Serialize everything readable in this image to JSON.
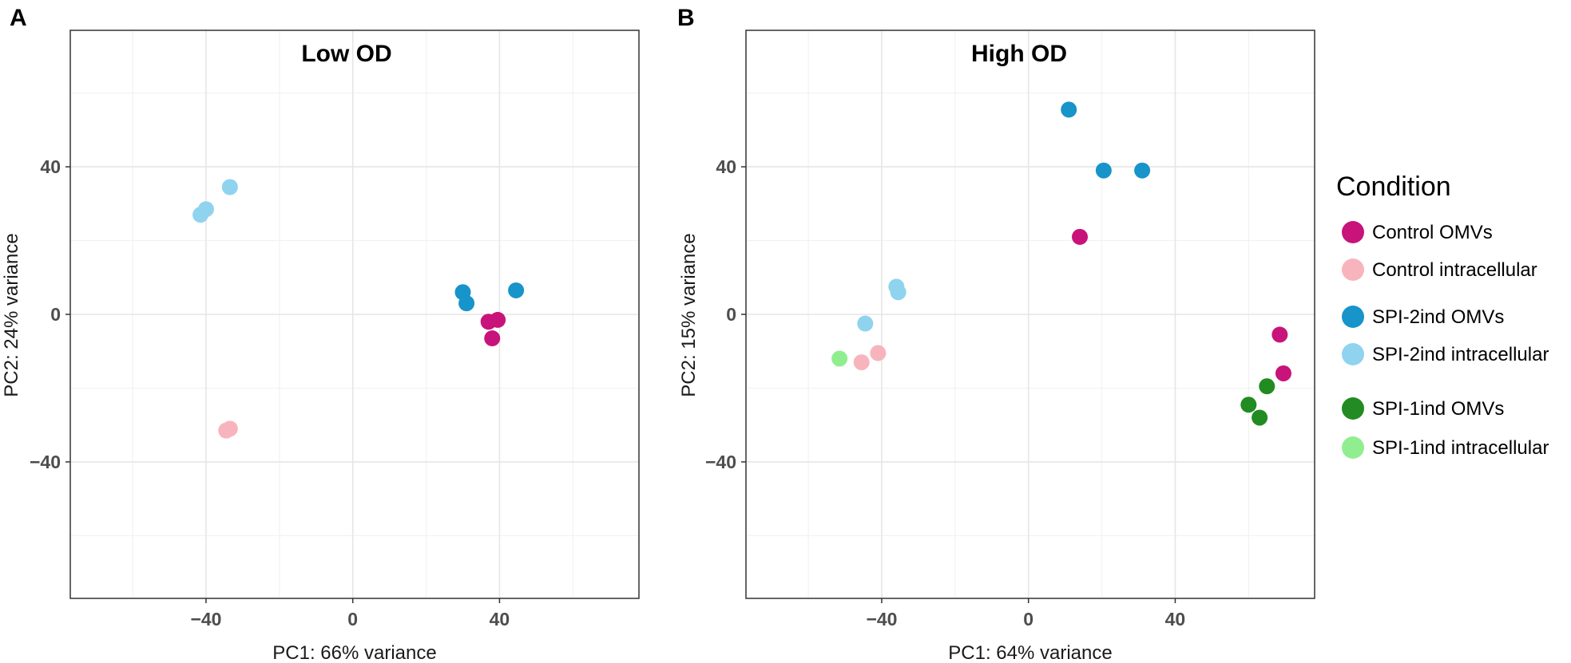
{
  "legend": {
    "title": "Condition",
    "entries": [
      {
        "key": "control_omv",
        "label": "Control OMVs",
        "color": "#C8137A"
      },
      {
        "key": "control_intra",
        "label": "Control intracellular",
        "color": "#F8B4BC"
      },
      {
        "key": "spi2_omv",
        "label": "SPI-2ind OMVs",
        "color": "#1794C9"
      },
      {
        "key": "spi2_intra",
        "label": "SPI-2ind intracellular",
        "color": "#8FD3EF"
      },
      {
        "key": "spi1_omv",
        "label": "SPI-1ind OMVs",
        "color": "#228B22"
      },
      {
        "key": "spi1_intra",
        "label": "SPI-1ind intracellular",
        "color": "#90EE90"
      }
    ]
  },
  "chart_data": [
    {
      "type": "scatter",
      "panel": "A",
      "title": "Low OD",
      "xlabel": "PC1: 66% variance",
      "ylabel": "PC2: 24% variance",
      "xlim": [
        -77,
        78
      ],
      "ylim": [
        -77,
        77
      ],
      "xticks": [
        -40,
        0,
        40
      ],
      "yticks": [
        -40,
        0,
        40
      ],
      "grid": true,
      "series": [
        {
          "key": "spi2_intra",
          "points": [
            [
              -41.5,
              27
            ],
            [
              -40,
              28.5
            ],
            [
              -33.5,
              34.5
            ]
          ]
        },
        {
          "key": "control_intra",
          "points": [
            [
              -34.5,
              -31.5
            ],
            [
              -33.5,
              -31
            ]
          ]
        },
        {
          "key": "spi2_omv",
          "points": [
            [
              30,
              6
            ],
            [
              31,
              3
            ],
            [
              44.5,
              6.5
            ]
          ]
        },
        {
          "key": "control_omv",
          "points": [
            [
              37,
              -2
            ],
            [
              39.5,
              -1.5
            ],
            [
              38,
              -6.5
            ]
          ]
        }
      ]
    },
    {
      "type": "scatter",
      "panel": "B",
      "title": "High OD",
      "xlabel": "PC1: 64% variance",
      "ylabel": "PC2: 15% variance",
      "xlim": [
        -77,
        78
      ],
      "ylim": [
        -77,
        77
      ],
      "xticks": [
        -40,
        0,
        40
      ],
      "yticks": [
        -40,
        0,
        40
      ],
      "grid": true,
      "series": [
        {
          "key": "spi2_omv",
          "points": [
            [
              11,
              55.5
            ],
            [
              20.5,
              39
            ],
            [
              31,
              39
            ]
          ]
        },
        {
          "key": "control_omv",
          "points": [
            [
              14,
              21
            ],
            [
              68.5,
              -5.5
            ],
            [
              69.5,
              -16
            ]
          ]
        },
        {
          "key": "spi2_intra",
          "points": [
            [
              -36,
              7.5
            ],
            [
              -35.5,
              6
            ],
            [
              -44.5,
              -2.5
            ]
          ]
        },
        {
          "key": "control_intra",
          "points": [
            [
              -41,
              -10.5
            ],
            [
              -45.5,
              -13
            ]
          ]
        },
        {
          "key": "spi1_intra",
          "points": [
            [
              -51.5,
              -12
            ]
          ]
        },
        {
          "key": "spi1_omv",
          "points": [
            [
              65,
              -19.5
            ],
            [
              60,
              -24.5
            ],
            [
              63,
              -28
            ]
          ]
        }
      ]
    }
  ]
}
